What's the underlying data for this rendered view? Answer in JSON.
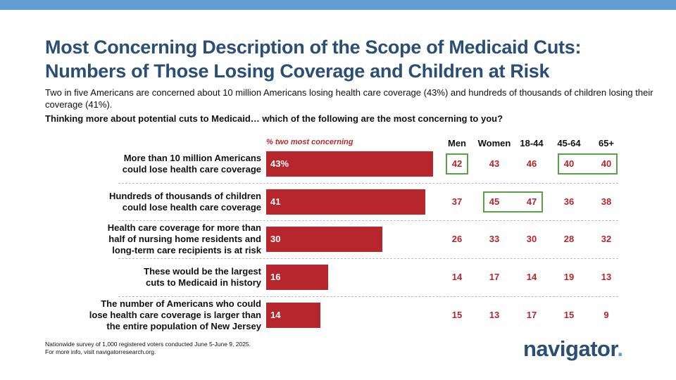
{
  "header": {
    "title_line1": "Most Concerning Description of the Scope of Medicaid Cuts:",
    "title_line2": "Numbers of Those Losing Coverage and Children at Risk",
    "subtitle": "Two in five Americans are concerned about 10 million Americans losing health care coverage (43%) and hundreds of thousands of children losing their coverage (41%).",
    "question": "Thinking more about potential cuts to Medicaid… which of the following are the most concerning to you?"
  },
  "colors": {
    "title": "#2b4e73",
    "bar": "#b6262c",
    "accent_bar": "#5f9fd3",
    "highlight": "#5aa14a"
  },
  "chart_data": {
    "type": "bar",
    "orientation": "horizontal",
    "legend": "% two most concerning",
    "xlim": [
      0,
      50
    ],
    "categories": [
      "More than 10 million Americans could lose health care coverage",
      "Hundreds of thousands of children could lose health care coverage",
      "Health care coverage for more than half of nursing home residents and long-term care recipients is at risk",
      "These would be the largest cuts to Medicaid in history",
      "The number of Americans who could lose health care coverage is larger than the entire population of New Jersey"
    ],
    "category_lines": [
      [
        "More than 10 million Americans",
        "could lose health care coverage"
      ],
      [
        "Hundreds of thousands of children",
        "could lose health care coverage"
      ],
      [
        "Health care coverage for more than",
        "half of nursing home residents and",
        "long-term care recipients is at risk"
      ],
      [
        "These would be the largest",
        "cuts to Medicaid in history"
      ],
      [
        "The number of Americans who could",
        "lose health care coverage is larger than",
        "the entire population of New Jersey"
      ]
    ],
    "values": [
      43,
      41,
      30,
      16,
      14
    ],
    "value_labels": [
      "43%",
      "41",
      "30",
      "16",
      "14"
    ],
    "columns": [
      "Men",
      "Women",
      "18-44",
      "45-64",
      "65+"
    ],
    "table": [
      [
        42,
        43,
        46,
        40,
        40
      ],
      [
        37,
        45,
        47,
        36,
        38
      ],
      [
        26,
        33,
        30,
        28,
        32
      ],
      [
        14,
        17,
        14,
        19,
        13
      ],
      [
        15,
        13,
        17,
        15,
        9
      ]
    ],
    "highlighted": [
      [
        0,
        0
      ],
      [
        0,
        3
      ],
      [
        0,
        4
      ],
      [
        1,
        1
      ],
      [
        1,
        2
      ]
    ]
  },
  "footer": {
    "note_line1": "Nationwide survey of 1,000 registered voters conducted June 5-June 9, 2025.",
    "note_line2": "For more info, visit navigatorresearch.org.",
    "logo": "navigator",
    "logo_dot": "."
  }
}
